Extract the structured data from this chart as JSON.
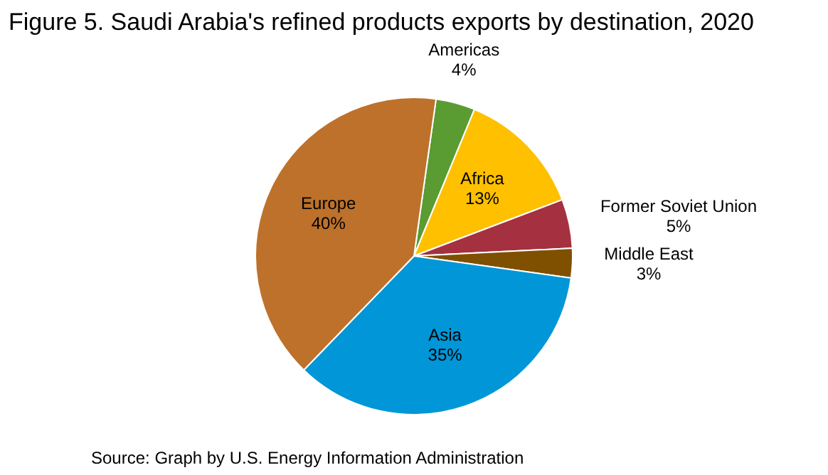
{
  "chart_data": {
    "type": "pie",
    "title": "Figure 5. Saudi Arabia's refined products exports by destination, 2020",
    "categories": [
      "Americas",
      "Africa",
      "Former Soviet Union",
      "Middle East",
      "Asia",
      "Europe"
    ],
    "values": [
      4,
      13,
      5,
      3,
      35,
      40
    ],
    "value_labels": [
      "4%",
      "13%",
      "5%",
      "3%",
      "35%",
      "40%"
    ],
    "colors": [
      "#5a9b32",
      "#ffc000",
      "#a5303f",
      "#7f5000",
      "#0096d7",
      "#bd712a"
    ],
    "legend": false,
    "annotations": [
      "Source: Graph by U.S. Energy Information Administration"
    ]
  }
}
